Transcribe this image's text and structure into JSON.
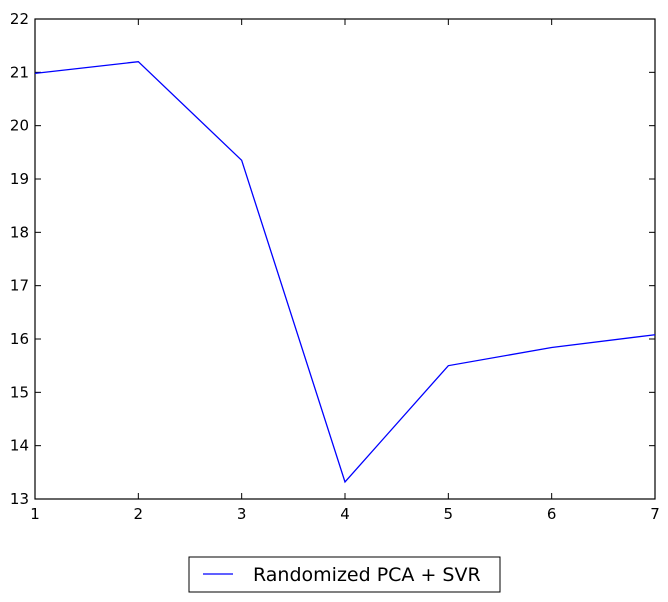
{
  "chart_data": {
    "type": "line",
    "title": "",
    "xlabel": "",
    "ylabel": "",
    "xlim": [
      1,
      7
    ],
    "ylim": [
      13,
      22
    ],
    "xticks": [
      1,
      2,
      3,
      4,
      5,
      6,
      7
    ],
    "yticks": [
      13,
      14,
      15,
      16,
      17,
      18,
      19,
      20,
      21,
      22
    ],
    "grid": false,
    "legend_position": "below",
    "series": [
      {
        "name": "Randomized PCA + SVR",
        "color": "#0000ff",
        "x": [
          1,
          2,
          3,
          4,
          5,
          6,
          7
        ],
        "y": [
          20.98,
          21.2,
          19.35,
          13.32,
          15.5,
          15.84,
          16.08
        ]
      }
    ]
  }
}
